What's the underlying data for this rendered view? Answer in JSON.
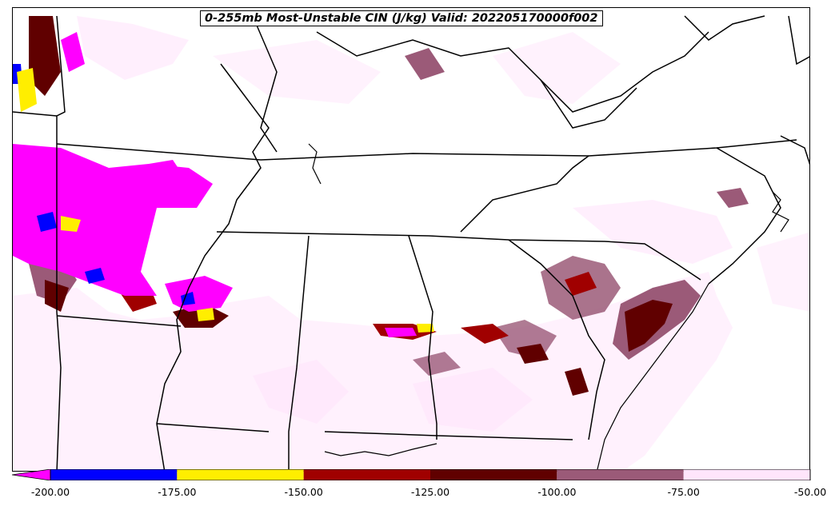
{
  "title": "0-255mb Most-Unstable CIN (J/kg) Valid: 202205170000f002",
  "legend": {
    "tick_labels": [
      "-200.00",
      "-175.00",
      "-150.00",
      "-125.00",
      "-100.00",
      "-75.00",
      "-50.00"
    ],
    "colors": [
      "#ff00ff",
      "#0000ff",
      "#ffee00",
      "#a00000",
      "#600000",
      "#9b5a78",
      "#ffe5fb"
    ],
    "extend": "min"
  },
  "colors": {
    "magenta": "#ff00ff",
    "blue": "#0000ff",
    "yellow": "#ffee00",
    "dark_red": "#a00000",
    "maroon": "#600000",
    "mauve": "#9b5a78",
    "pale_pink": "#ffe5fb",
    "boundary": "#000000"
  }
}
